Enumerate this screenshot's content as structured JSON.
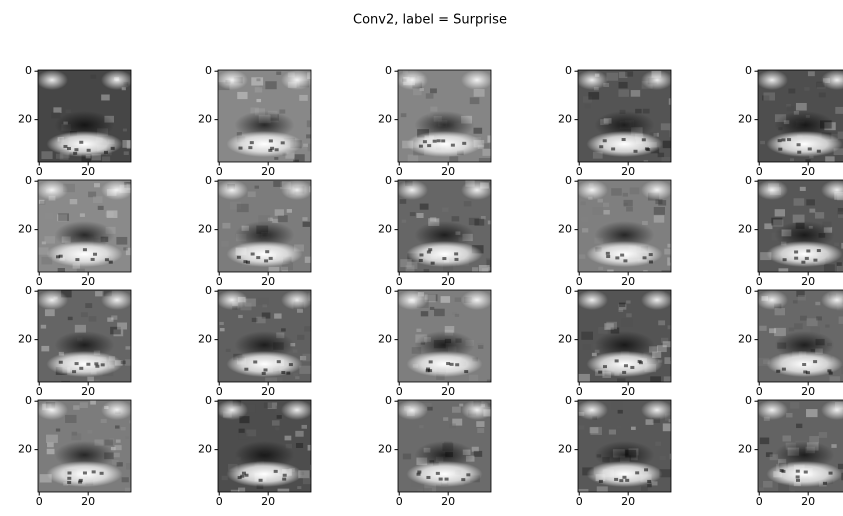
{
  "title": "Conv2, label = Surprise",
  "chart_data": [
    {
      "type": "image",
      "xlim": [
        -0.5,
        37.5
      ],
      "ylim": [
        37.5,
        -0.5
      ],
      "xticks": [
        0,
        20
      ],
      "yticks": [
        0,
        20
      ]
    },
    {
      "type": "image",
      "xlim": [
        -0.5,
        37.5
      ],
      "ylim": [
        37.5,
        -0.5
      ],
      "xticks": [
        0,
        20
      ],
      "yticks": [
        0,
        20
      ]
    },
    {
      "type": "image",
      "xlim": [
        -0.5,
        37.5
      ],
      "ylim": [
        37.5,
        -0.5
      ],
      "xticks": [
        0,
        20
      ],
      "yticks": [
        0,
        20
      ]
    },
    {
      "type": "image",
      "xlim": [
        -0.5,
        37.5
      ],
      "ylim": [
        37.5,
        -0.5
      ],
      "xticks": [
        0,
        20
      ],
      "yticks": [
        0,
        20
      ]
    },
    {
      "type": "image",
      "xlim": [
        -0.5,
        37.5
      ],
      "ylim": [
        37.5,
        -0.5
      ],
      "xticks": [
        0,
        20
      ],
      "yticks": [
        0,
        20
      ]
    },
    {
      "type": "image",
      "xlim": [
        -0.5,
        37.5
      ],
      "ylim": [
        37.5,
        -0.5
      ],
      "xticks": [
        0,
        20
      ],
      "yticks": [
        0,
        20
      ]
    },
    {
      "type": "image",
      "xlim": [
        -0.5,
        37.5
      ],
      "ylim": [
        37.5,
        -0.5
      ],
      "xticks": [
        0,
        20
      ],
      "yticks": [
        0,
        20
      ]
    },
    {
      "type": "image",
      "xlim": [
        -0.5,
        37.5
      ],
      "ylim": [
        37.5,
        -0.5
      ],
      "xticks": [
        0,
        20
      ],
      "yticks": [
        0,
        20
      ]
    },
    {
      "type": "image",
      "xlim": [
        -0.5,
        37.5
      ],
      "ylim": [
        37.5,
        -0.5
      ],
      "xticks": [
        0,
        20
      ],
      "yticks": [
        0,
        20
      ]
    },
    {
      "type": "image",
      "xlim": [
        -0.5,
        37.5
      ],
      "ylim": [
        37.5,
        -0.5
      ],
      "xticks": [
        0,
        20
      ],
      "yticks": [
        0,
        20
      ]
    },
    {
      "type": "image",
      "xlim": [
        -0.5,
        37.5
      ],
      "ylim": [
        37.5,
        -0.5
      ],
      "xticks": [
        0,
        20
      ],
      "yticks": [
        0,
        20
      ]
    },
    {
      "type": "image",
      "xlim": [
        -0.5,
        37.5
      ],
      "ylim": [
        37.5,
        -0.5
      ],
      "xticks": [
        0,
        20
      ],
      "yticks": [
        0,
        20
      ]
    },
    {
      "type": "image",
      "xlim": [
        -0.5,
        37.5
      ],
      "ylim": [
        37.5,
        -0.5
      ],
      "xticks": [
        0,
        20
      ],
      "yticks": [
        0,
        20
      ]
    },
    {
      "type": "image",
      "xlim": [
        -0.5,
        37.5
      ],
      "ylim": [
        37.5,
        -0.5
      ],
      "xticks": [
        0,
        20
      ],
      "yticks": [
        0,
        20
      ]
    },
    {
      "type": "image",
      "xlim": [
        -0.5,
        37.5
      ],
      "ylim": [
        37.5,
        -0.5
      ],
      "xticks": [
        0,
        20
      ],
      "yticks": [
        0,
        20
      ]
    },
    {
      "type": "image",
      "xlim": [
        -0.5,
        37.5
      ],
      "ylim": [
        37.5,
        -0.5
      ],
      "xticks": [
        0,
        20
      ],
      "yticks": [
        0,
        20
      ]
    },
    {
      "type": "image",
      "xlim": [
        -0.5,
        37.5
      ],
      "ylim": [
        37.5,
        -0.5
      ],
      "xticks": [
        0,
        20
      ],
      "yticks": [
        0,
        20
      ]
    },
    {
      "type": "image",
      "xlim": [
        -0.5,
        37.5
      ],
      "ylim": [
        37.5,
        -0.5
      ],
      "xticks": [
        0,
        20
      ],
      "yticks": [
        0,
        20
      ]
    },
    {
      "type": "image",
      "xlim": [
        -0.5,
        37.5
      ],
      "ylim": [
        37.5,
        -0.5
      ],
      "xticks": [
        0,
        20
      ],
      "yticks": [
        0,
        20
      ]
    },
    {
      "type": "image",
      "xlim": [
        -0.5,
        37.5
      ],
      "ylim": [
        37.5,
        -0.5
      ],
      "xticks": [
        0,
        20
      ],
      "yticks": [
        0,
        20
      ]
    }
  ]
}
